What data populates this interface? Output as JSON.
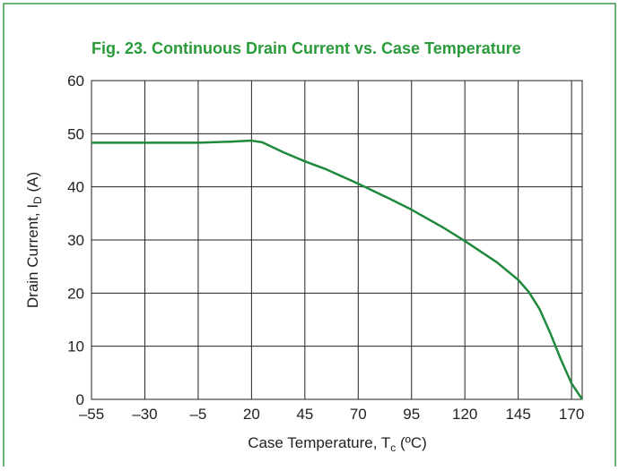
{
  "chart_data": {
    "type": "line",
    "title": "Fig. 23. Continuous Drain Current vs. Case Temperature",
    "y_label": [
      "Drain Current, I",
      "D",
      " (A)"
    ],
    "x_label": [
      "Case Temperature, T",
      "c",
      " (ºC)"
    ],
    "x": [
      -55,
      -5,
      10,
      20,
      25,
      35,
      45,
      55,
      70,
      85,
      95,
      110,
      120,
      135,
      145,
      150,
      155,
      160,
      165,
      170,
      175
    ],
    "values": [
      48.3,
      48.3,
      48.5,
      48.7,
      48.4,
      46.5,
      44.8,
      43.3,
      40.6,
      37.7,
      35.7,
      32.3,
      29.8,
      25.8,
      22.5,
      20.2,
      17,
      12.5,
      7.5,
      3,
      0
    ],
    "color": "#1f8a3c",
    "xlim": [
      -55,
      175
    ],
    "xticks": [
      {
        "value": -55,
        "label": "–55"
      },
      {
        "value": -30,
        "label": "–30"
      },
      {
        "value": -5,
        "label": "–5"
      },
      20,
      45,
      70,
      95,
      120,
      145,
      170
    ],
    "ylim": [
      0,
      60
    ],
    "yticks": [
      0,
      10,
      20,
      30,
      40,
      50,
      60
    ],
    "grid": true
  }
}
